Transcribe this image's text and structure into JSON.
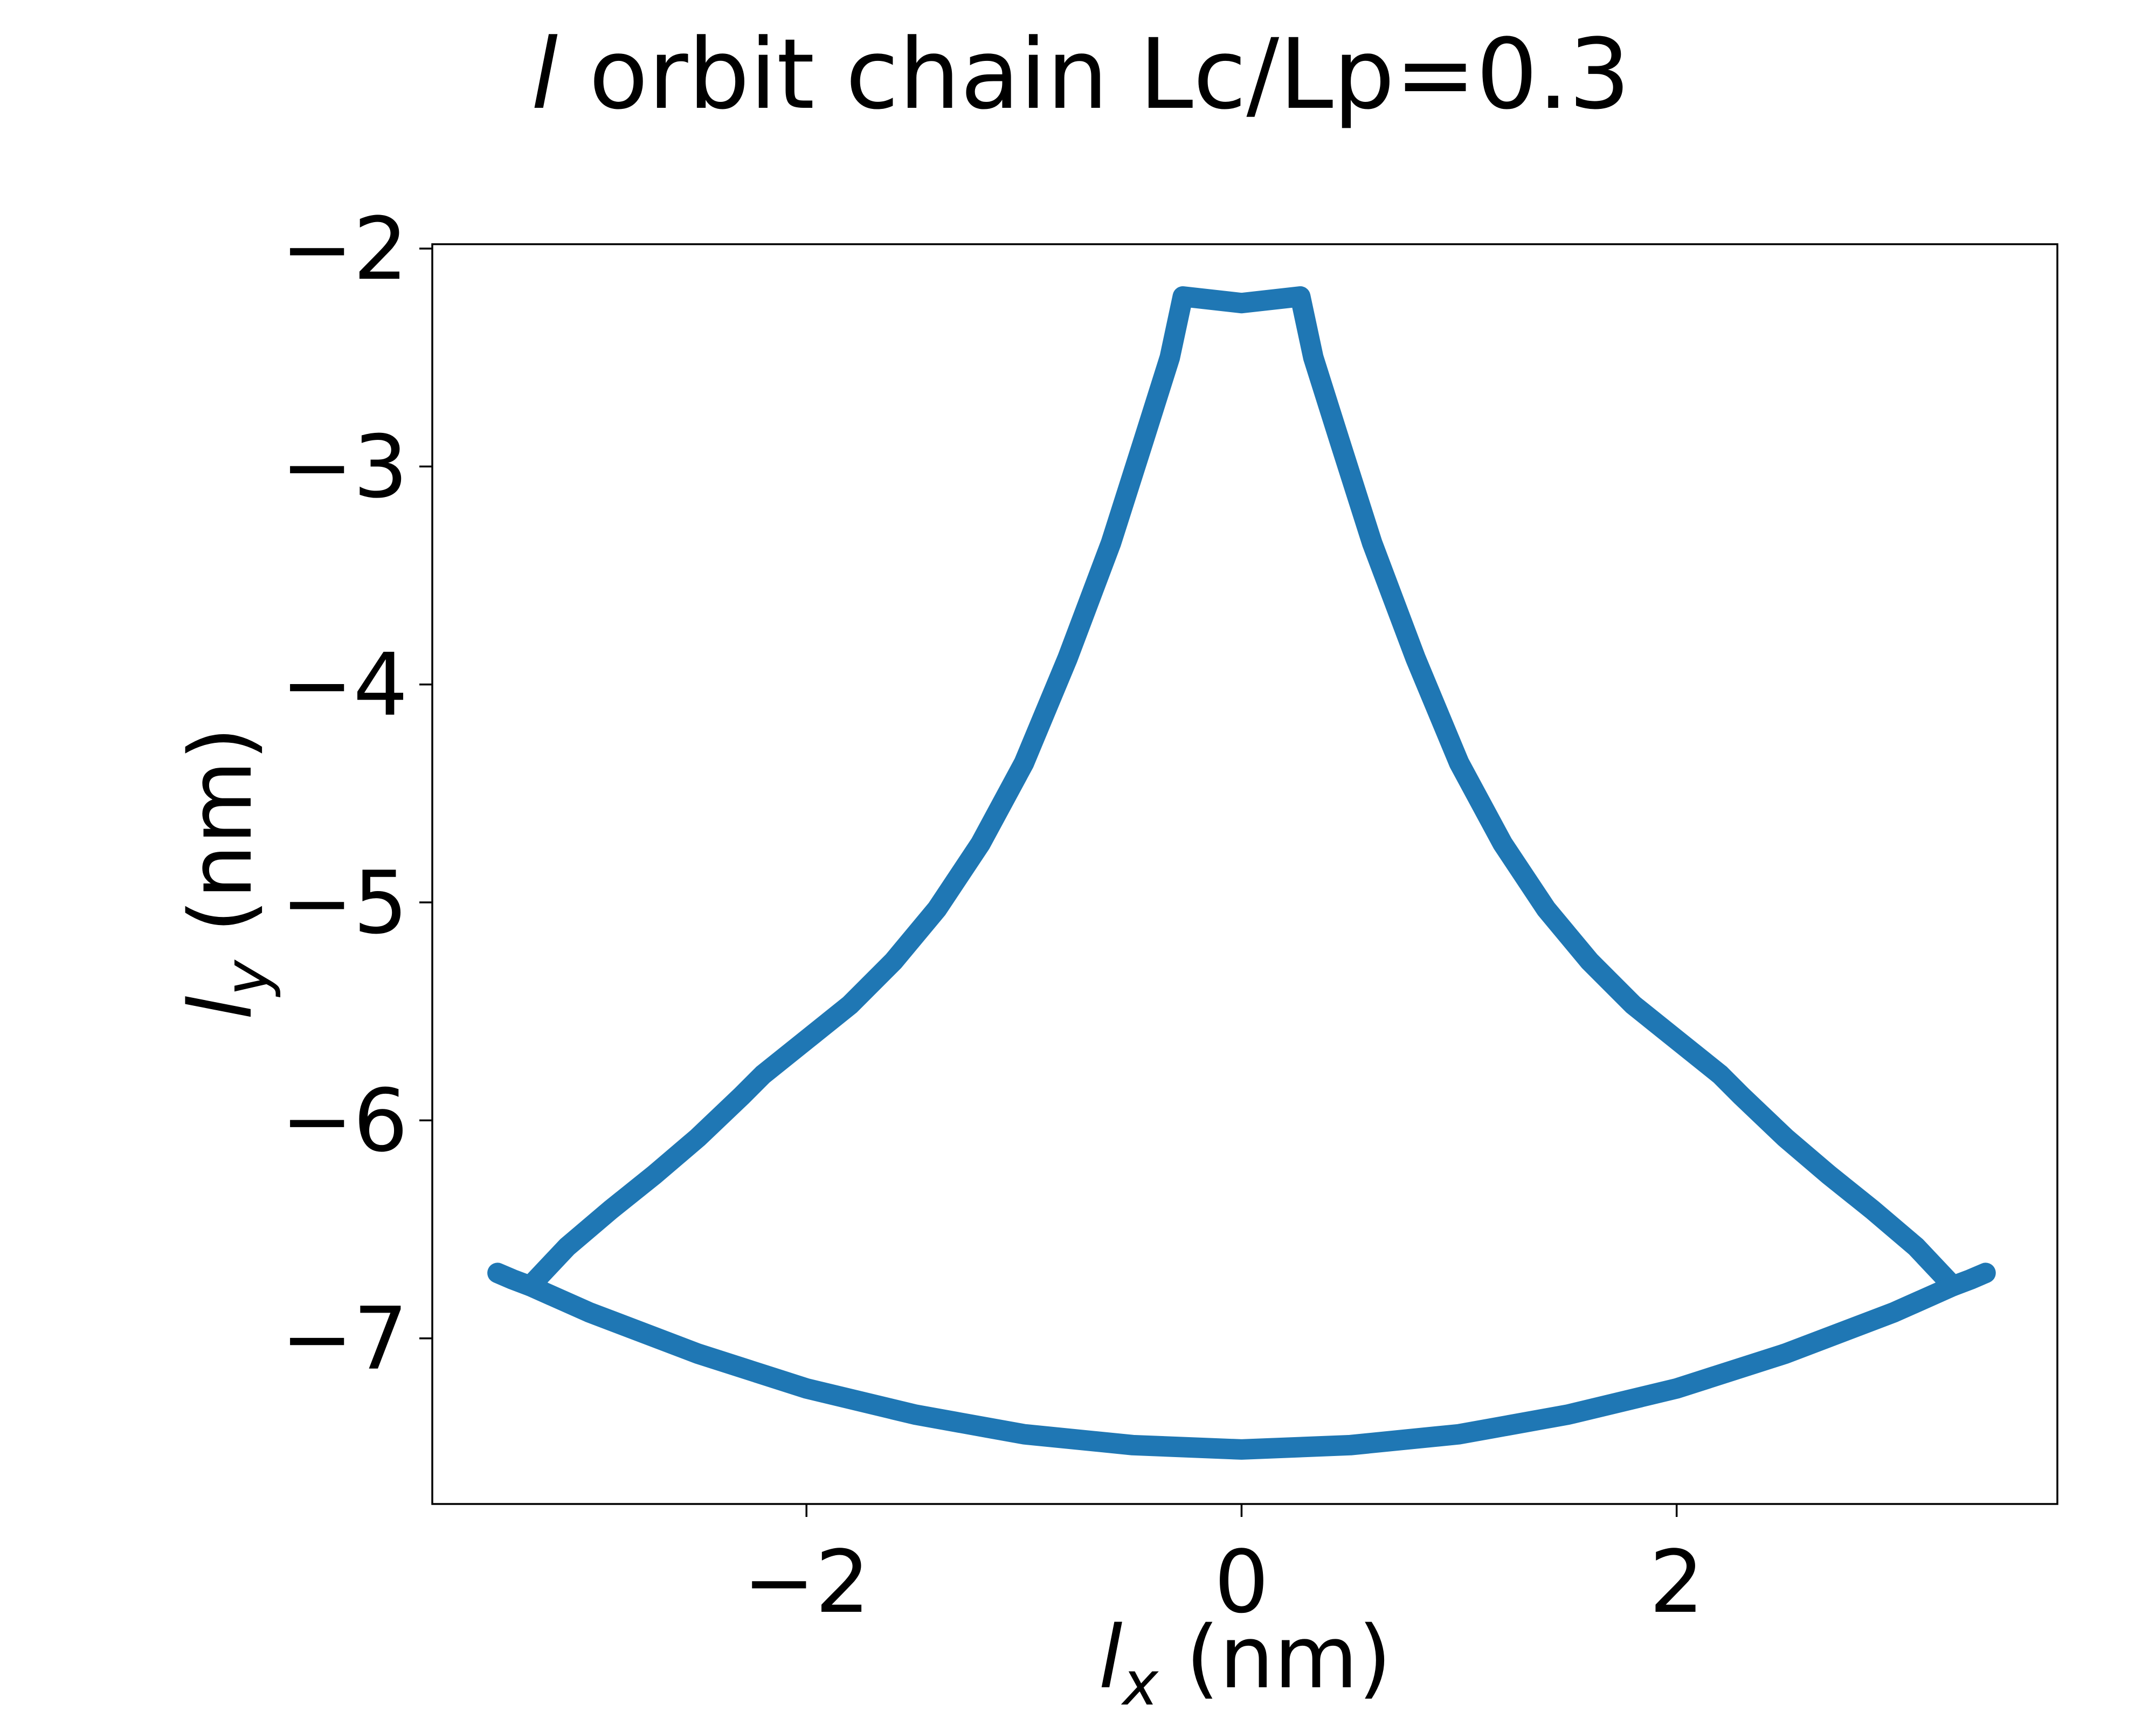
{
  "chart_data": {
    "type": "line",
    "title_italic": "l",
    "title_rest": " orbit chain Lc/Lp=0.3",
    "xlabel": {
      "symbol": "l",
      "subscript": "x",
      "unit": " (nm)"
    },
    "ylabel": {
      "symbol": "l",
      "subscript": "y",
      "unit": " (nm)"
    },
    "xlim": [
      -3.72,
      3.75
    ],
    "ylim": [
      -7.76,
      -1.98
    ],
    "xticks": [
      -2,
      0,
      2
    ],
    "xtick_labels": [
      "−2",
      "0",
      "2"
    ],
    "yticks": [
      -2,
      -3,
      -4,
      -5,
      -6,
      -7
    ],
    "ytick_labels": [
      "−2",
      "−3",
      "−4",
      "−5",
      "−6",
      "−7"
    ],
    "grid": false,
    "series": [
      {
        "color": "#1f77b4",
        "x": [
          -3.42,
          -3.35,
          -3.27,
          -3.1,
          -2.9,
          -2.7,
          -2.5,
          -2.3,
          -2.2,
          -2.0,
          -1.8,
          -1.6,
          -1.4,
          -1.2,
          -1.0,
          -0.8,
          -0.6,
          -0.45,
          -0.33,
          -0.27,
          0.0,
          0.27,
          0.33,
          0.45,
          0.6,
          0.8,
          1.0,
          1.2,
          1.4,
          1.6,
          1.8,
          2.0,
          2.2,
          2.3,
          2.5,
          2.7,
          2.9,
          3.1,
          3.27,
          3.35,
          3.42
        ],
        "y": [
          -6.7,
          -6.73,
          -6.76,
          -6.58,
          -6.41,
          -6.25,
          -6.08,
          -5.89,
          -5.79,
          -5.63,
          -5.47,
          -5.27,
          -5.03,
          -4.73,
          -4.36,
          -3.88,
          -3.35,
          -2.88,
          -2.5,
          -2.22,
          -2.25,
          -2.22,
          -2.5,
          -2.88,
          -3.35,
          -3.88,
          -4.36,
          -4.73,
          -5.03,
          -5.27,
          -5.47,
          -5.63,
          -5.79,
          -5.89,
          -6.08,
          -6.25,
          -6.41,
          -6.58,
          -6.76,
          -6.73,
          -6.7
        ]
      },
      {
        "color": "#1f77b4",
        "x": [
          -3.27,
          -3.0,
          -2.5,
          -2.0,
          -1.5,
          -1.0,
          -0.5,
          0.0,
          0.5,
          1.0,
          1.5,
          2.0,
          2.5,
          3.0,
          3.27
        ],
        "y": [
          -6.76,
          -6.88,
          -7.07,
          -7.23,
          -7.35,
          -7.44,
          -7.49,
          -7.51,
          -7.49,
          -7.44,
          -7.35,
          -7.23,
          -7.07,
          -6.88,
          -6.76
        ]
      }
    ]
  }
}
